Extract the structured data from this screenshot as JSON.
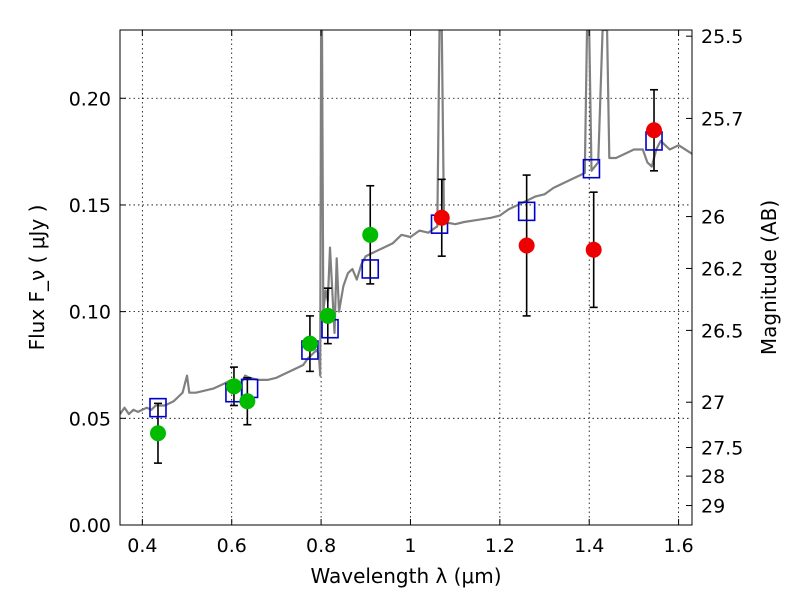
{
  "chart_data": {
    "type": "scatter",
    "title": "",
    "xlabel": "Wavelength  λ (μm)",
    "ylabel": "Flux  F_ν  ( μJy )",
    "ylabel_right": "Magnitude (AB)",
    "xlim": [
      0.35,
      1.63
    ],
    "ylim": [
      0.0,
      0.232
    ],
    "grid": true,
    "x_ticks": [
      0.4,
      0.6,
      0.8,
      1.0,
      1.2,
      1.4,
      1.6
    ],
    "x_tick_labels": [
      "0.4",
      "0.6",
      "0.8",
      "1",
      "1.2",
      "1.4",
      "1.6"
    ],
    "y_ticks": [
      0.0,
      0.05,
      0.1,
      0.15,
      0.2
    ],
    "y_tick_labels": [
      "0.00",
      "0.05",
      "0.10",
      "0.15",
      "0.20"
    ],
    "right_axis": {
      "type": "AB magnitude",
      "ticks": [
        25.5,
        25.7,
        26,
        26.2,
        26.5,
        27,
        27.5,
        28,
        29
      ],
      "tick_labels": [
        "25.5",
        "25.7",
        "26",
        "26.2",
        "26.5",
        "27",
        "27.5",
        "28",
        "29"
      ]
    },
    "series": [
      {
        "kind": "line",
        "color": "#808080",
        "points": [
          [
            0.35,
            0.052
          ],
          [
            0.36,
            0.055
          ],
          [
            0.37,
            0.052
          ],
          [
            0.38,
            0.054
          ],
          [
            0.39,
            0.053
          ],
          [
            0.4,
            0.054
          ],
          [
            0.41,
            0.055
          ],
          [
            0.42,
            0.054
          ],
          [
            0.43,
            0.056
          ],
          [
            0.44,
            0.056
          ],
          [
            0.45,
            0.056
          ],
          [
            0.46,
            0.057
          ],
          [
            0.47,
            0.058
          ],
          [
            0.48,
            0.06
          ],
          [
            0.49,
            0.062
          ],
          [
            0.5,
            0.07
          ],
          [
            0.505,
            0.062
          ],
          [
            0.52,
            0.062
          ],
          [
            0.54,
            0.063
          ],
          [
            0.56,
            0.064
          ],
          [
            0.58,
            0.066
          ],
          [
            0.6,
            0.068
          ],
          [
            0.62,
            0.066
          ],
          [
            0.63,
            0.07
          ],
          [
            0.64,
            0.069
          ],
          [
            0.66,
            0.068
          ],
          [
            0.68,
            0.068
          ],
          [
            0.7,
            0.069
          ],
          [
            0.72,
            0.071
          ],
          [
            0.74,
            0.073
          ],
          [
            0.76,
            0.075
          ],
          [
            0.77,
            0.078
          ],
          [
            0.78,
            0.08
          ],
          [
            0.79,
            0.082
          ],
          [
            0.795,
            0.08
          ],
          [
            0.798,
            0.07
          ],
          [
            0.8,
            0.232
          ],
          [
            0.802,
            0.232
          ],
          [
            0.805,
            0.1
          ],
          [
            0.81,
            0.11
          ],
          [
            0.815,
            0.105
          ],
          [
            0.82,
            0.13
          ],
          [
            0.83,
            0.09
          ],
          [
            0.835,
            0.125
          ],
          [
            0.84,
            0.1
          ],
          [
            0.85,
            0.112
          ],
          [
            0.86,
            0.118
          ],
          [
            0.87,
            0.12
          ],
          [
            0.88,
            0.115
          ],
          [
            0.89,
            0.122
          ],
          [
            0.9,
            0.126
          ],
          [
            0.92,
            0.128
          ],
          [
            0.94,
            0.13
          ],
          [
            0.96,
            0.132
          ],
          [
            0.98,
            0.136
          ],
          [
            1.0,
            0.135
          ],
          [
            1.02,
            0.138
          ],
          [
            1.04,
            0.137
          ],
          [
            1.06,
            0.14
          ],
          [
            1.065,
            0.232
          ],
          [
            1.07,
            0.232
          ],
          [
            1.075,
            0.142
          ],
          [
            1.1,
            0.141
          ],
          [
            1.12,
            0.142
          ],
          [
            1.15,
            0.143
          ],
          [
            1.18,
            0.144
          ],
          [
            1.2,
            0.145
          ],
          [
            1.22,
            0.148
          ],
          [
            1.24,
            0.15
          ],
          [
            1.26,
            0.152
          ],
          [
            1.28,
            0.154
          ],
          [
            1.3,
            0.155
          ],
          [
            1.32,
            0.158
          ],
          [
            1.34,
            0.16
          ],
          [
            1.36,
            0.162
          ],
          [
            1.38,
            0.164
          ],
          [
            1.39,
            0.165
          ],
          [
            1.395,
            0.232
          ],
          [
            1.4,
            0.232
          ],
          [
            1.405,
            0.166
          ],
          [
            1.42,
            0.17
          ],
          [
            1.43,
            0.232
          ],
          [
            1.44,
            0.232
          ],
          [
            1.445,
            0.172
          ],
          [
            1.46,
            0.172
          ],
          [
            1.48,
            0.174
          ],
          [
            1.5,
            0.176
          ],
          [
            1.52,
            0.176
          ],
          [
            1.53,
            0.17
          ],
          [
            1.54,
            0.168
          ],
          [
            1.55,
            0.176
          ],
          [
            1.56,
            0.18
          ],
          [
            1.58,
            0.176
          ],
          [
            1.6,
            0.178
          ],
          [
            1.63,
            0.174
          ]
        ]
      },
      {
        "kind": "model-squares",
        "color": "#0000cc",
        "x": [
          0.435,
          0.605,
          0.64,
          0.775,
          0.82,
          0.91,
          1.065,
          1.26,
          1.405,
          1.545
        ],
        "y": [
          0.055,
          0.062,
          0.064,
          0.082,
          0.092,
          0.12,
          0.141,
          0.147,
          0.167,
          0.18
        ]
      },
      {
        "kind": "points",
        "color": "#00bb00",
        "x": [
          0.435,
          0.605,
          0.635,
          0.775,
          0.815,
          0.91
        ],
        "y": [
          0.043,
          0.065,
          0.058,
          0.085,
          0.098,
          0.136
        ],
        "yerr": [
          0.014,
          0.009,
          0.011,
          0.013,
          0.013,
          0.023
        ]
      },
      {
        "kind": "points",
        "color": "#ee0000",
        "x": [
          1.07,
          1.26,
          1.41,
          1.545
        ],
        "y": [
          0.144,
          0.131,
          0.129,
          0.185
        ],
        "yerr": [
          0.018,
          0.033,
          0.027,
          0.019
        ]
      }
    ]
  }
}
